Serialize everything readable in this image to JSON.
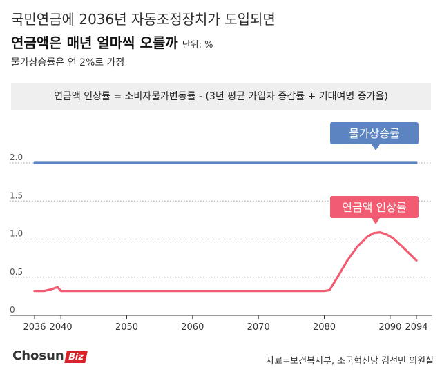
{
  "header": {
    "title_line1": "국민연금에 2036년 자동조정장치가 도입되면",
    "title_line2": "연금액은 매년 얼마씩 오를까",
    "unit": "단위: %",
    "subtitle": "물가상승률은 연 2%로 가정",
    "formula": "연금액 인상률 = 소비자물가변동률 - (3년 평균 가입자 증감률 + 기대여명 증가율)"
  },
  "footer": {
    "logo_main": "Chosun",
    "logo_biz": "Biz",
    "source": "자료=보건복지부, 조국혁신당 김선민 의원실"
  },
  "colors": {
    "inflation": "#5b84c0",
    "pension": "#f25c72"
  },
  "chart_data": {
    "type": "line",
    "x_ticks": [
      "2036",
      "2040",
      "2050",
      "2060",
      "2070",
      "2080",
      "2090",
      "2094"
    ],
    "y_ticks": [
      "0",
      "0.5",
      "1.0",
      "1.5",
      "2.0"
    ],
    "xlim": [
      2036,
      2094
    ],
    "ylim": [
      0,
      2.0
    ],
    "series": [
      {
        "name": "물가상승률",
        "x": [
          2036,
          2094
        ],
        "values": [
          2.0,
          2.0
        ]
      },
      {
        "name": "연금액 인상률",
        "x": [
          2036,
          2037.5,
          2038.5,
          2039.5,
          2040,
          2042,
          2050,
          2060,
          2070,
          2075,
          2080,
          2080.8,
          2082,
          2083.5,
          2085,
          2086.5,
          2087.5,
          2088.5,
          2089.5,
          2090.5,
          2092,
          2094
        ],
        "values": [
          0.32,
          0.32,
          0.34,
          0.37,
          0.32,
          0.32,
          0.32,
          0.32,
          0.32,
          0.32,
          0.32,
          0.33,
          0.5,
          0.72,
          0.9,
          1.03,
          1.08,
          1.09,
          1.06,
          1.01,
          0.89,
          0.72
        ]
      }
    ]
  }
}
